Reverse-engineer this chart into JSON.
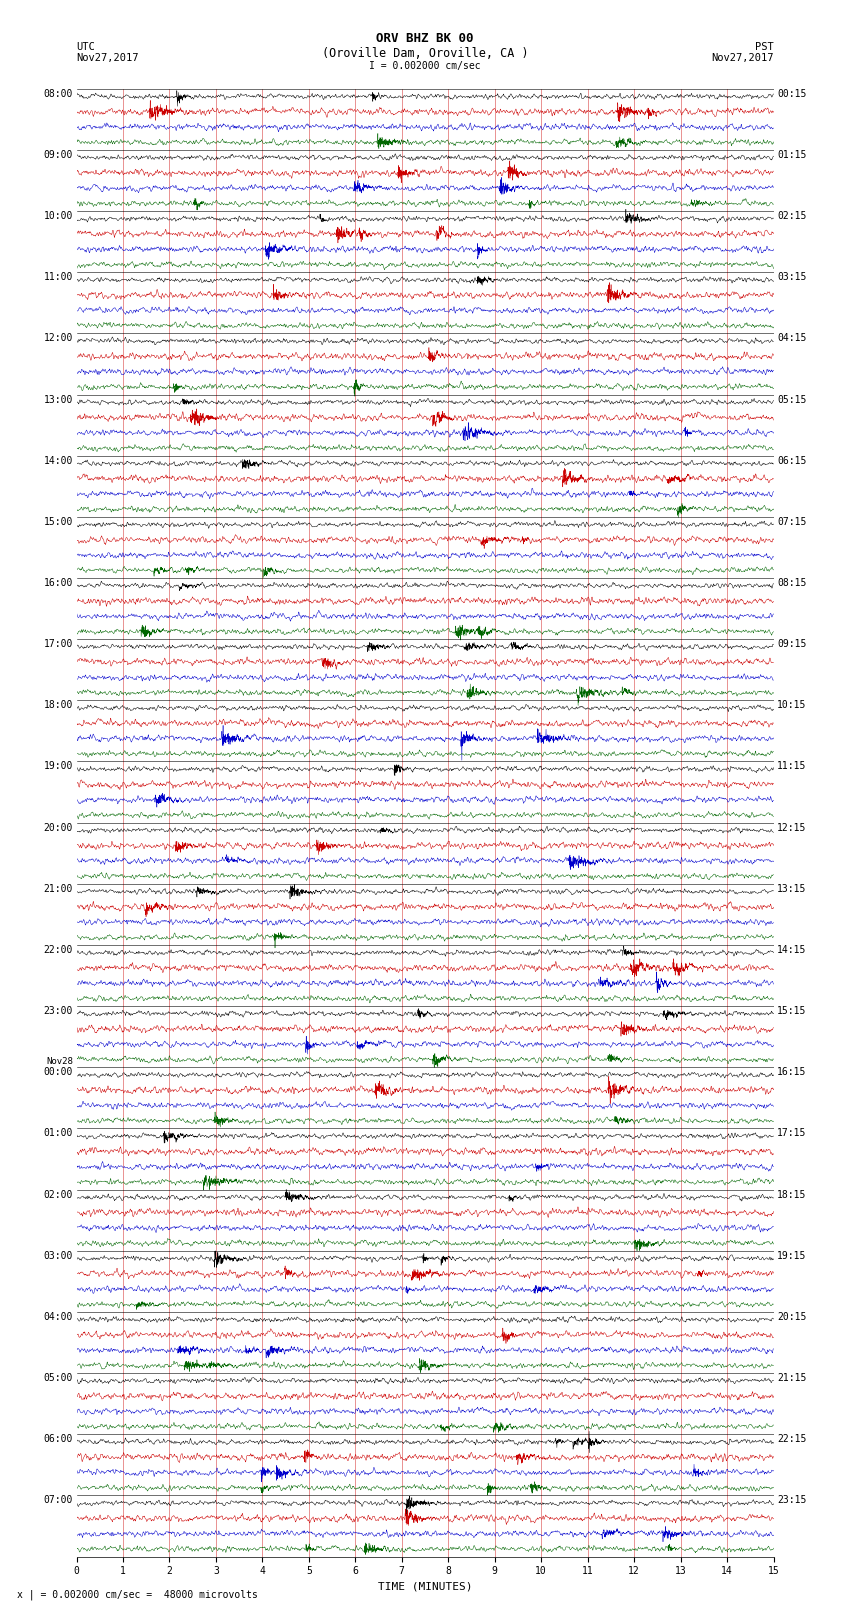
{
  "title_line1": "ORV BHZ BK 00",
  "title_line2": "(Oroville Dam, Oroville, CA )",
  "scale_text": "I = 0.002000 cm/sec",
  "bottom_note": "x | = 0.002000 cm/sec =  48000 microvolts",
  "utc_label": "UTC",
  "pst_label": "PST",
  "date_left": "Nov27,2017",
  "date_right": "Nov27,2017",
  "xlabel": "TIME (MINUTES)",
  "xlim": [
    0,
    15
  ],
  "xticks": [
    0,
    1,
    2,
    3,
    4,
    5,
    6,
    7,
    8,
    9,
    10,
    11,
    12,
    13,
    14,
    15
  ],
  "trace_colors": [
    "#000000",
    "#cc0000",
    "#0000cc",
    "#006600"
  ],
  "background_color": "#ffffff",
  "traces_per_row": 4,
  "noise_amplitude_color": [
    0.018,
    0.025,
    0.022,
    0.02
  ],
  "minutes_per_row": 15,
  "utc_labels": [
    "08:00",
    "09:00",
    "10:00",
    "11:00",
    "12:00",
    "13:00",
    "14:00",
    "15:00",
    "16:00",
    "17:00",
    "18:00",
    "19:00",
    "20:00",
    "21:00",
    "22:00",
    "23:00",
    "Nov28\n00:00",
    "01:00",
    "02:00",
    "03:00",
    "04:00",
    "05:00",
    "06:00",
    "07:00"
  ],
  "pst_labels": [
    "00:15",
    "01:15",
    "02:15",
    "03:15",
    "04:15",
    "05:15",
    "06:15",
    "07:15",
    "08:15",
    "09:15",
    "10:15",
    "11:15",
    "12:15",
    "13:15",
    "14:15",
    "15:15",
    "16:15",
    "17:15",
    "18:15",
    "19:15",
    "20:15",
    "21:15",
    "22:15",
    "23:15"
  ],
  "fig_width": 8.5,
  "fig_height": 16.13,
  "dpi": 100,
  "title_fontsize": 9,
  "label_fontsize": 7.5,
  "tick_fontsize": 7,
  "axis_label_fontsize": 8
}
